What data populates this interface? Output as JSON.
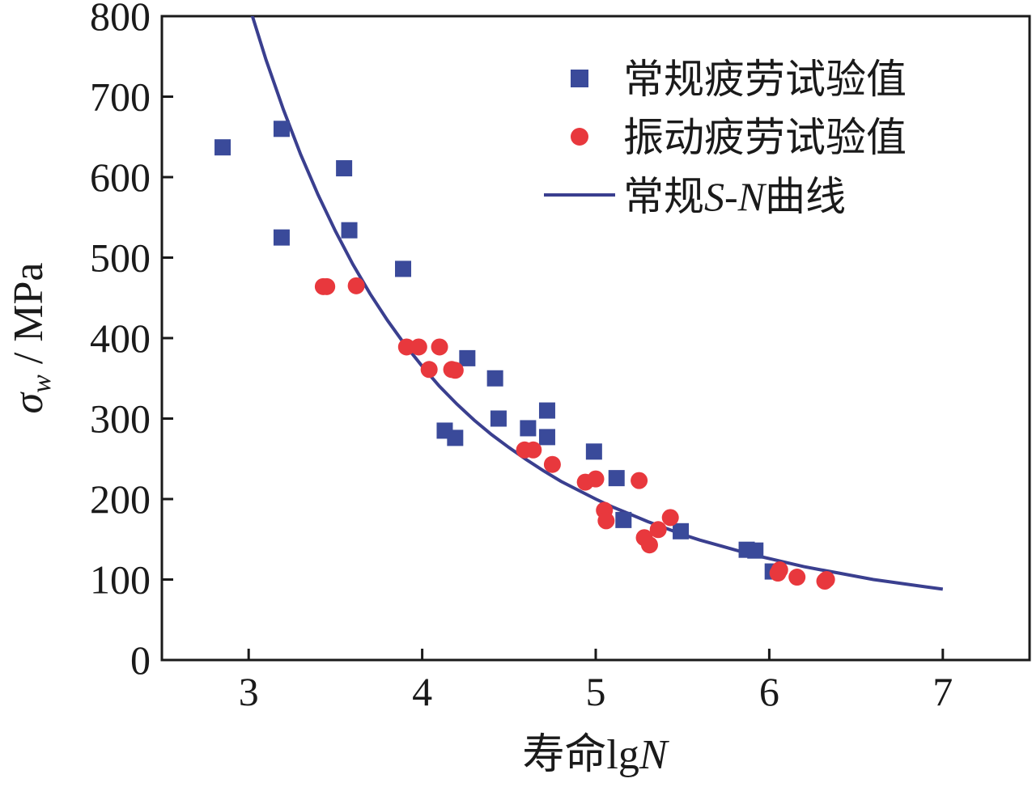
{
  "chart_data": {
    "type": "scatter",
    "title": "",
    "xlabel": "寿命lgN",
    "ylabel": "σw / MPa",
    "xlim": [
      2.5,
      7.5
    ],
    "ylim": [
      0,
      800
    ],
    "xticks": [
      "3",
      "4",
      "5",
      "6",
      "7"
    ],
    "xtick_values": [
      3,
      4,
      5,
      6,
      7
    ],
    "yticks": [
      "0",
      "100",
      "200",
      "300",
      "400",
      "500",
      "600",
      "700",
      "800"
    ],
    "ytick_values": [
      0,
      100,
      200,
      300,
      400,
      500,
      600,
      700,
      800
    ],
    "grid": false,
    "legend_position": "top-right",
    "series": [
      {
        "name": "常规疲劳试验值",
        "kind": "scatter",
        "marker": "square",
        "color": "#3a4a9a",
        "points": [
          [
            2.85,
            637
          ],
          [
            3.19,
            660
          ],
          [
            3.19,
            525
          ],
          [
            3.55,
            611
          ],
          [
            3.58,
            534
          ],
          [
            3.89,
            486
          ],
          [
            4.13,
            285
          ],
          [
            4.19,
            276
          ],
          [
            4.26,
            375
          ],
          [
            4.42,
            350
          ],
          [
            4.44,
            300
          ],
          [
            4.61,
            288
          ],
          [
            4.72,
            310
          ],
          [
            4.72,
            277
          ],
          [
            4.99,
            259
          ],
          [
            5.12,
            226
          ],
          [
            5.16,
            174
          ],
          [
            5.49,
            160
          ],
          [
            5.87,
            137
          ],
          [
            5.92,
            136
          ],
          [
            6.02,
            110
          ]
        ]
      },
      {
        "name": "振动疲劳试验值",
        "kind": "scatter",
        "marker": "circle",
        "color": "#e8383d",
        "points": [
          [
            3.43,
            464
          ],
          [
            3.45,
            464
          ],
          [
            3.62,
            465
          ],
          [
            3.91,
            389
          ],
          [
            3.98,
            389
          ],
          [
            4.04,
            361
          ],
          [
            4.1,
            389
          ],
          [
            4.17,
            361
          ],
          [
            4.19,
            360
          ],
          [
            4.59,
            261
          ],
          [
            4.64,
            261
          ],
          [
            4.75,
            243
          ],
          [
            4.94,
            221
          ],
          [
            5.0,
            225
          ],
          [
            5.05,
            186
          ],
          [
            5.06,
            173
          ],
          [
            5.25,
            223
          ],
          [
            5.28,
            152
          ],
          [
            5.31,
            143
          ],
          [
            5.36,
            162
          ],
          [
            5.43,
            177
          ],
          [
            6.05,
            108
          ],
          [
            6.06,
            112
          ],
          [
            6.16,
            103
          ],
          [
            6.32,
            98
          ],
          [
            6.33,
            100
          ]
        ]
      },
      {
        "name": "常规S-N曲线",
        "kind": "line",
        "color": "#3a3f8f",
        "x": [
          3.0,
          3.1,
          3.2,
          3.3,
          3.4,
          3.5,
          3.6,
          3.7,
          3.8,
          3.9,
          4.0,
          4.1,
          4.2,
          4.3,
          4.4,
          4.5,
          4.6,
          4.7,
          4.8,
          4.9,
          5.0,
          5.1,
          5.2,
          5.3,
          5.4,
          5.5,
          5.6,
          5.7,
          5.8,
          5.9,
          6.0,
          6.1,
          6.2,
          6.3,
          6.4,
          6.5,
          6.6,
          6.7,
          6.8,
          6.9,
          7.0
        ],
        "y": [
          815,
          746,
          684,
          628,
          578,
          533,
          492,
          455,
          422,
          392,
          365,
          340,
          318,
          298,
          280,
          264,
          249,
          235,
          222,
          211,
          200,
          190,
          181,
          172,
          164,
          156,
          149,
          143,
          137,
          131,
          126,
          121,
          116,
          112,
          108,
          104,
          100,
          97,
          94,
          91,
          88
        ]
      }
    ]
  },
  "legend": {
    "items": [
      {
        "label": "常规疲劳试验值",
        "color": "#3a4a9a"
      },
      {
        "label": "振动疲劳试验值",
        "color": "#e8383d"
      },
      {
        "label_prefix": "常规",
        "label_italic": "S-N",
        "label_suffix": "曲线",
        "color": "#3a3f8f"
      }
    ]
  },
  "axis_titles": {
    "x_prefix": "寿命lg",
    "x_italic": "N",
    "y_sigma": "σ",
    "y_sub": "w",
    "y_unit": " / MPa"
  }
}
